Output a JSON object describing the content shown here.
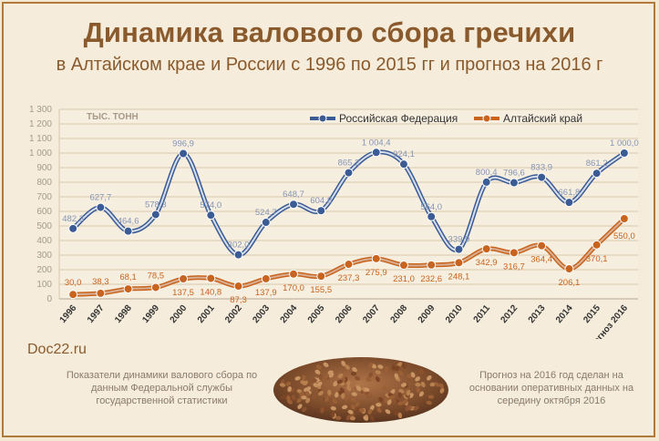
{
  "title": "Динамика валового сбора гречихи",
  "subtitle": "в Алтайском крае и России с 1996 по 2015 гг и прогноз на 2016 г",
  "site": "Doc22.ru",
  "note_left": "Показатели динамики валового сбора по данным Федеральной службы государственной статистики",
  "note_right": "Прогноз на 2016 год сделан на основании оперативных данных на середину октября 2016",
  "colors": {
    "russia": "#3b5b95",
    "altai": "#c8641e",
    "title": "#8a5a2c"
  },
  "chart_data": {
    "type": "line",
    "unit_label": "ТЫС. ТОНН",
    "categories": [
      "1996",
      "1997",
      "1998",
      "1999",
      "2000",
      "2001",
      "2002",
      "2003",
      "2004",
      "2005",
      "2006",
      "2007",
      "2008",
      "2009",
      "2010",
      "2011",
      "2012",
      "2013",
      "2014",
      "2015",
      "прогноз 2016"
    ],
    "ylim": [
      0,
      1300
    ],
    "yticks": [
      0,
      100,
      200,
      300,
      400,
      500,
      600,
      700,
      800,
      900,
      1000,
      1100,
      1200,
      1300
    ],
    "ytick_labels": [
      "0",
      "100",
      "200",
      "300",
      "400",
      "500",
      "600",
      "700",
      "800",
      "900",
      "1 000",
      "1 100",
      "1 200",
      "1 300"
    ],
    "grid": true,
    "legend_position": "top",
    "series": [
      {
        "name": "Российская Федерация",
        "values": [
          482.3,
          627.7,
          464.6,
          578.3,
          996.9,
          574.0,
          302.0,
          524.7,
          648.7,
          604.8,
          865.2,
          1004.4,
          924.1,
          564.0,
          339.9,
          800.4,
          796.6,
          833.9,
          661.8,
          861.2,
          1000.0
        ],
        "labels": [
          "482,3",
          "627,7",
          "464,6",
          "578,3",
          "996,9",
          "574,0",
          "302,0",
          "524,7",
          "648,7",
          "604,8",
          "865,2",
          "1 004,4",
          "924,1",
          "564,0",
          "339,9",
          "800,4",
          "796,6",
          "833,9",
          "661,8",
          "861,2",
          "1 000,0"
        ]
      },
      {
        "name": "Алтайский край",
        "values": [
          30.0,
          38.3,
          68.1,
          78.5,
          137.5,
          140.8,
          87.3,
          137.9,
          170.0,
          155.5,
          237.3,
          275.9,
          231.0,
          232.6,
          248.1,
          342.9,
          316.7,
          364.4,
          206.1,
          370.1,
          550.0
        ],
        "labels": [
          "30,0",
          "38,3",
          "68,1",
          "78,5",
          "137,5",
          "140,8",
          "87,3",
          "137,9",
          "170,0",
          "155,5",
          "237,3",
          "275,9",
          "231,0",
          "232,6",
          "248,1",
          "342,9",
          "316,7",
          "364,4",
          "206,1",
          "370,1",
          "550,0"
        ]
      }
    ]
  }
}
